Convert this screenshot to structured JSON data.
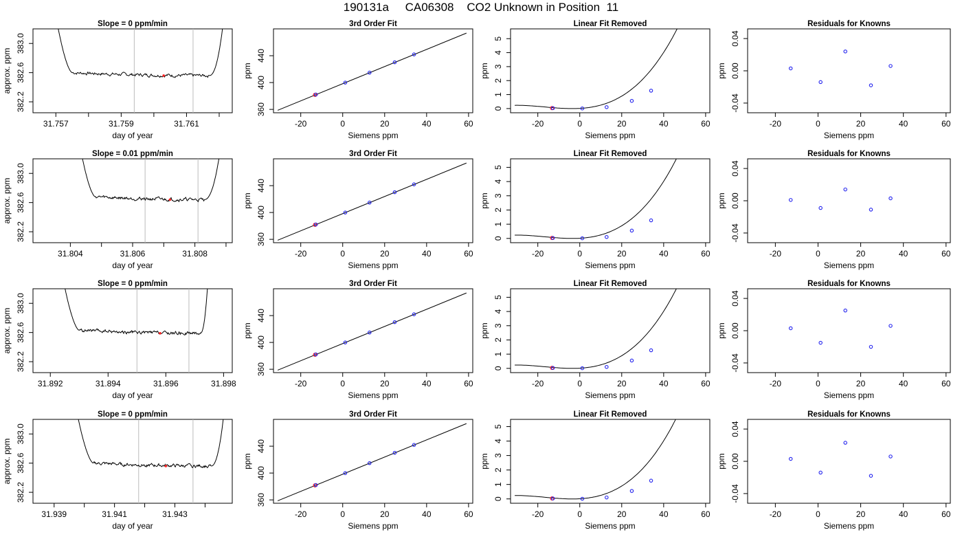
{
  "page": {
    "title": "190131a     CA06308    CO2 Unknown in Position  11"
  },
  "chart_data": [
    {
      "type": "line",
      "title": "Slope =  0  ppm/min",
      "xlabel": "day of year",
      "ylabel": "approx. ppm",
      "xlim": [
        31.7563,
        31.7624
      ],
      "ylim": [
        382.05,
        383.2
      ],
      "xticks": [
        31.757,
        31.759,
        31.761
      ],
      "xticklabels": [
        "31.757",
        "31.759",
        "31.761"
      ],
      "xminor": [
        31.758,
        31.76,
        31.762
      ],
      "yticks": [
        382.2,
        382.6,
        383.0
      ],
      "yticklabels": [
        "382.2",
        "382.6",
        "383.0"
      ],
      "vlines": [
        31.7594,
        31.7612
      ],
      "point": {
        "x": 31.7603,
        "y": 382.56
      },
      "trace": {
        "x0": 31.7569,
        "x1": 31.7622,
        "rise_from": 31.7575,
        "fall_from": 31.7617,
        "level": 382.56,
        "hi": 383.6
      }
    },
    {
      "type": "scatter",
      "title": "3rd Order Fit",
      "xlabel": "Siemens ppm",
      "ylabel": "ppm",
      "xlim": [
        -33,
        62
      ],
      "ylim": [
        355,
        480
      ],
      "xticks": [
        -20,
        0,
        20,
        40,
        60
      ],
      "xticklabels": [
        "-20",
        "0",
        "20",
        "40",
        "60"
      ],
      "yticks": [
        360,
        400,
        440
      ],
      "yticklabels": [
        "360",
        "400",
        "440"
      ],
      "knowns": {
        "x": [
          -12.8,
          1.2,
          12.8,
          24.8,
          34
        ],
        "y": [
          382.1,
          399.9,
          414.8,
          430.2,
          441.9
        ]
      },
      "unknown": {
        "x": -13.2,
        "y": 381.6
      },
      "fit": {
        "x0": -31,
        "x1": 59,
        "a": 398.3,
        "b": 1.278
      }
    },
    {
      "type": "scatter",
      "title": "Linear Fit Removed",
      "xlabel": "Siemens ppm",
      "ylabel": "ppm",
      "xlim": [
        -33,
        62
      ],
      "ylim": [
        -0.3,
        5.7
      ],
      "xticks": [
        -20,
        0,
        20,
        40,
        60
      ],
      "xticklabels": [
        "-20",
        "0",
        "20",
        "40",
        "60"
      ],
      "yticks": [
        0,
        1,
        2,
        3,
        4,
        5
      ],
      "yticklabels": [
        "0",
        "1",
        "2",
        "3",
        "4",
        "5"
      ],
      "knowns": {
        "x": [
          -12.8,
          1.2,
          12.8,
          24.8,
          34
        ],
        "y": [
          0.03,
          0.01,
          0.1,
          0.55,
          1.28
        ]
      },
      "unknown": {
        "x": -13.2,
        "y": 0.03
      },
      "curve": {
        "x0": -31,
        "x1": 59,
        "c3": 2.55e-05,
        "c2": 0.0009,
        "k": 0.5
      }
    },
    {
      "type": "scatter",
      "title": "Residuals for Knowns",
      "xlabel": "Siemens ppm",
      "ylabel": "ppm",
      "xlim": [
        -33,
        62
      ],
      "ylim": [
        -0.052,
        0.052
      ],
      "xticks": [
        -20,
        0,
        20,
        40,
        60
      ],
      "xticklabels": [
        "-20",
        "0",
        "20",
        "40",
        "60"
      ],
      "yticks": [
        -0.04,
        0,
        0.04
      ],
      "yticklabels": [
        "-0.04",
        "0.00",
        "0.04"
      ],
      "knowns": {
        "x": [
          -12.8,
          1.2,
          12.8,
          24.8,
          34
        ],
        "y": [
          0.003,
          -0.014,
          0.024,
          -0.018,
          0.006
        ]
      }
    },
    {
      "type": "line",
      "title": "Slope =  0.01  ppm/min",
      "xlabel": "day of year",
      "ylabel": "approx. ppm",
      "xlim": [
        31.8028,
        31.8092
      ],
      "ylim": [
        382.05,
        383.2
      ],
      "xticks": [
        31.804,
        31.806,
        31.808
      ],
      "xticklabels": [
        "31.804",
        "31.806",
        "31.808"
      ],
      "xminor": [
        31.805,
        31.807,
        31.809
      ],
      "yticks": [
        382.2,
        382.6,
        383.0
      ],
      "yticklabels": [
        "382.2",
        "382.6",
        "383.0"
      ],
      "vlines": [
        31.8064,
        31.8081
      ],
      "point": {
        "x": 31.8072,
        "y": 382.64
      },
      "trace": {
        "x0": 31.8042,
        "x1": 31.8089,
        "rise_from": 31.8048,
        "fall_from": 31.8083,
        "level": 382.64,
        "hi": 383.6
      }
    },
    {
      "type": "scatter",
      "title": "3rd Order Fit",
      "xlabel": "Siemens ppm",
      "ylabel": "ppm",
      "xlim": [
        -33,
        62
      ],
      "ylim": [
        355,
        480
      ],
      "xticks": [
        -20,
        0,
        20,
        40,
        60
      ],
      "xticklabels": [
        "-20",
        "0",
        "20",
        "40",
        "60"
      ],
      "yticks": [
        360,
        400,
        440
      ],
      "yticklabels": [
        "360",
        "400",
        "440"
      ],
      "knowns": {
        "x": [
          -12.8,
          1.2,
          12.8,
          24.8,
          34
        ],
        "y": [
          382.1,
          399.9,
          414.8,
          430.2,
          441.9
        ]
      },
      "unknown": {
        "x": -13.2,
        "y": 381.6
      },
      "fit": {
        "x0": -31,
        "x1": 59,
        "a": 398.3,
        "b": 1.278
      }
    },
    {
      "type": "scatter",
      "title": "Linear Fit Removed",
      "xlabel": "Siemens ppm",
      "ylabel": "ppm",
      "xlim": [
        -33,
        62
      ],
      "ylim": [
        -0.3,
        5.6
      ],
      "xticks": [
        -20,
        0,
        20,
        40,
        60
      ],
      "xticklabels": [
        "-20",
        "0",
        "20",
        "40",
        "60"
      ],
      "yticks": [
        0,
        1,
        2,
        3,
        4,
        5
      ],
      "yticklabels": [
        "0",
        "1",
        "2",
        "3",
        "4",
        "5"
      ],
      "knowns": {
        "x": [
          -12.8,
          1.2,
          12.8,
          24.8,
          34
        ],
        "y": [
          0.03,
          0.01,
          0.1,
          0.55,
          1.27
        ]
      },
      "unknown": {
        "x": -13.2,
        "y": 0.03
      },
      "curve": {
        "x0": -31,
        "x1": 59,
        "c3": 2.55e-05,
        "c2": 0.0009,
        "k": 0.5
      }
    },
    {
      "type": "scatter",
      "title": "Residuals for Knowns",
      "xlabel": "Siemens ppm",
      "ylabel": "ppm",
      "xlim": [
        -33,
        62
      ],
      "ylim": [
        -0.052,
        0.052
      ],
      "xticks": [
        -20,
        0,
        20,
        40,
        60
      ],
      "xticklabels": [
        "-20",
        "0",
        "20",
        "40",
        "60"
      ],
      "yticks": [
        -0.04,
        0,
        0.04
      ],
      "yticklabels": [
        "-0.04",
        "0.00",
        "0.04"
      ],
      "knowns": {
        "x": [
          -12.8,
          1.2,
          12.8,
          24.8,
          34
        ],
        "y": [
          0.001,
          -0.009,
          0.014,
          -0.011,
          0.003
        ]
      }
    },
    {
      "type": "line",
      "title": "Slope =  0  ppm/min",
      "xlabel": "day of year",
      "ylabel": "approx. ppm",
      "xlim": [
        31.8914,
        31.8983
      ],
      "ylim": [
        382.05,
        383.2
      ],
      "xticks": [
        31.892,
        31.894,
        31.896,
        31.898
      ],
      "xticklabels": [
        "31.892",
        "31.894",
        "31.896",
        "31.898"
      ],
      "xminor": [],
      "yticks": [
        382.2,
        382.6,
        383.0
      ],
      "yticklabels": [
        "382.2",
        "382.6",
        "383.0"
      ],
      "vlines": [
        31.895,
        31.8968
      ],
      "point": {
        "x": 31.8958,
        "y": 382.59
      },
      "trace": {
        "x0": 31.8923,
        "x1": 31.8975,
        "rise_from": 31.893,
        "fall_from": 31.8972,
        "level": 382.59,
        "hi": 383.6
      }
    },
    {
      "type": "scatter",
      "title": "3rd Order Fit",
      "xlabel": "Siemens ppm",
      "ylabel": "ppm",
      "xlim": [
        -33,
        62
      ],
      "ylim": [
        355,
        480
      ],
      "xticks": [
        -20,
        0,
        20,
        40,
        60
      ],
      "xticklabels": [
        "-20",
        "0",
        "20",
        "40",
        "60"
      ],
      "yticks": [
        360,
        400,
        440
      ],
      "yticklabels": [
        "360",
        "400",
        "440"
      ],
      "knowns": {
        "x": [
          -12.8,
          1.2,
          12.8,
          24.8,
          34
        ],
        "y": [
          382.1,
          399.9,
          414.8,
          430.2,
          441.9
        ]
      },
      "unknown": {
        "x": -13.2,
        "y": 381.6
      },
      "fit": {
        "x0": -31,
        "x1": 59,
        "a": 398.3,
        "b": 1.278
      }
    },
    {
      "type": "scatter",
      "title": "Linear Fit Removed",
      "xlabel": "Siemens ppm",
      "ylabel": "ppm",
      "xlim": [
        -33,
        62
      ],
      "ylim": [
        -0.3,
        5.6
      ],
      "xticks": [
        -20,
        0,
        20,
        40,
        60
      ],
      "xticklabels": [
        "-20",
        "0",
        "20",
        "40",
        "60"
      ],
      "yticks": [
        0,
        1,
        2,
        3,
        4,
        5
      ],
      "yticklabels": [
        "0",
        "1",
        "2",
        "3",
        "4",
        "5"
      ],
      "knowns": {
        "x": [
          -12.8,
          1.2,
          12.8,
          24.8,
          34
        ],
        "y": [
          0.03,
          0.01,
          0.1,
          0.55,
          1.27
        ]
      },
      "unknown": {
        "x": -13.2,
        "y": 0.03
      },
      "curve": {
        "x0": -31,
        "x1": 59,
        "c3": 2.55e-05,
        "c2": 0.0009,
        "k": 0.5
      }
    },
    {
      "type": "scatter",
      "title": "Residuals for Knowns",
      "xlabel": "Siemens ppm",
      "ylabel": "ppm",
      "xlim": [
        -33,
        62
      ],
      "ylim": [
        -0.052,
        0.052
      ],
      "xticks": [
        -20,
        0,
        20,
        40,
        60
      ],
      "xticklabels": [
        "-20",
        "0",
        "20",
        "40",
        "60"
      ],
      "yticks": [
        -0.04,
        0,
        0.04
      ],
      "yticklabels": [
        "-0.04",
        "0.00",
        "0.04"
      ],
      "knowns": {
        "x": [
          -12.8,
          1.2,
          12.8,
          24.8,
          34
        ],
        "y": [
          0.003,
          -0.015,
          0.025,
          -0.02,
          0.006
        ]
      }
    },
    {
      "type": "line",
      "title": "Slope =  0  ppm/min",
      "xlabel": "day of year",
      "ylabel": "approx. ppm",
      "xlim": [
        31.9383,
        31.9449
      ],
      "ylim": [
        382.05,
        383.2
      ],
      "xticks": [
        31.939,
        31.941,
        31.943
      ],
      "xticklabels": [
        "31.939",
        "31.941",
        "31.943"
      ],
      "xminor": [
        31.94,
        31.942,
        31.944
      ],
      "yticks": [
        382.2,
        382.6,
        383.0
      ],
      "yticklabels": [
        "382.2",
        "382.6",
        "383.0"
      ],
      "vlines": [
        31.9418,
        31.9436
      ],
      "point": {
        "x": 31.9427,
        "y": 382.56
      },
      "trace": {
        "x0": 31.9396,
        "x1": 31.9447,
        "rise_from": 31.9403,
        "fall_from": 31.9442,
        "level": 382.56,
        "hi": 383.6
      }
    },
    {
      "type": "scatter",
      "title": "3rd Order Fit",
      "xlabel": "Siemens ppm",
      "ylabel": "ppm",
      "xlim": [
        -33,
        62
      ],
      "ylim": [
        355,
        480
      ],
      "xticks": [
        -20,
        0,
        20,
        40,
        60
      ],
      "xticklabels": [
        "-20",
        "0",
        "20",
        "40",
        "60"
      ],
      "yticks": [
        360,
        400,
        440
      ],
      "yticklabels": [
        "360",
        "400",
        "440"
      ],
      "knowns": {
        "x": [
          -12.8,
          1.2,
          12.8,
          24.8,
          34
        ],
        "y": [
          382.1,
          399.9,
          414.8,
          430.2,
          441.9
        ]
      },
      "unknown": {
        "x": -13.2,
        "y": 381.6
      },
      "fit": {
        "x0": -31,
        "x1": 59,
        "a": 398.3,
        "b": 1.278
      }
    },
    {
      "type": "scatter",
      "title": "Linear Fit Removed",
      "xlabel": "Siemens ppm",
      "ylabel": "ppm",
      "xlim": [
        -33,
        62
      ],
      "ylim": [
        -0.3,
        5.5
      ],
      "xticks": [
        -20,
        0,
        20,
        40,
        60
      ],
      "xticklabels": [
        "-20",
        "0",
        "20",
        "40",
        "60"
      ],
      "yticks": [
        0,
        1,
        2,
        3,
        4,
        5
      ],
      "yticklabels": [
        "0",
        "1",
        "2",
        "3",
        "4",
        "5"
      ],
      "knowns": {
        "x": [
          -12.8,
          1.2,
          12.8,
          24.8,
          34
        ],
        "y": [
          0.03,
          0.01,
          0.1,
          0.55,
          1.26
        ]
      },
      "unknown": {
        "x": -13.2,
        "y": 0.03
      },
      "curve": {
        "x0": -31,
        "x1": 59,
        "c3": 2.55e-05,
        "c2": 0.0009,
        "k": 0.5
      }
    },
    {
      "type": "scatter",
      "title": "Residuals for Knowns",
      "xlabel": "Siemens ppm",
      "ylabel": "ppm",
      "xlim": [
        -33,
        62
      ],
      "ylim": [
        -0.052,
        0.052
      ],
      "xticks": [
        -20,
        0,
        20,
        40,
        60
      ],
      "xticklabels": [
        "-20",
        "0",
        "20",
        "40",
        "60"
      ],
      "yticks": [
        -0.04,
        0,
        0.04
      ],
      "yticklabels": [
        "-0.04",
        "0.00",
        "0.04"
      ],
      "knowns": {
        "x": [
          -12.8,
          1.2,
          12.8,
          24.8,
          34
        ],
        "y": [
          0.003,
          -0.014,
          0.023,
          -0.018,
          0.006
        ]
      }
    }
  ],
  "colors": {
    "known_point": "#2222ee",
    "unknown_point": "#ff2222",
    "vline": "#bbbbbb",
    "axis": "#000000"
  }
}
